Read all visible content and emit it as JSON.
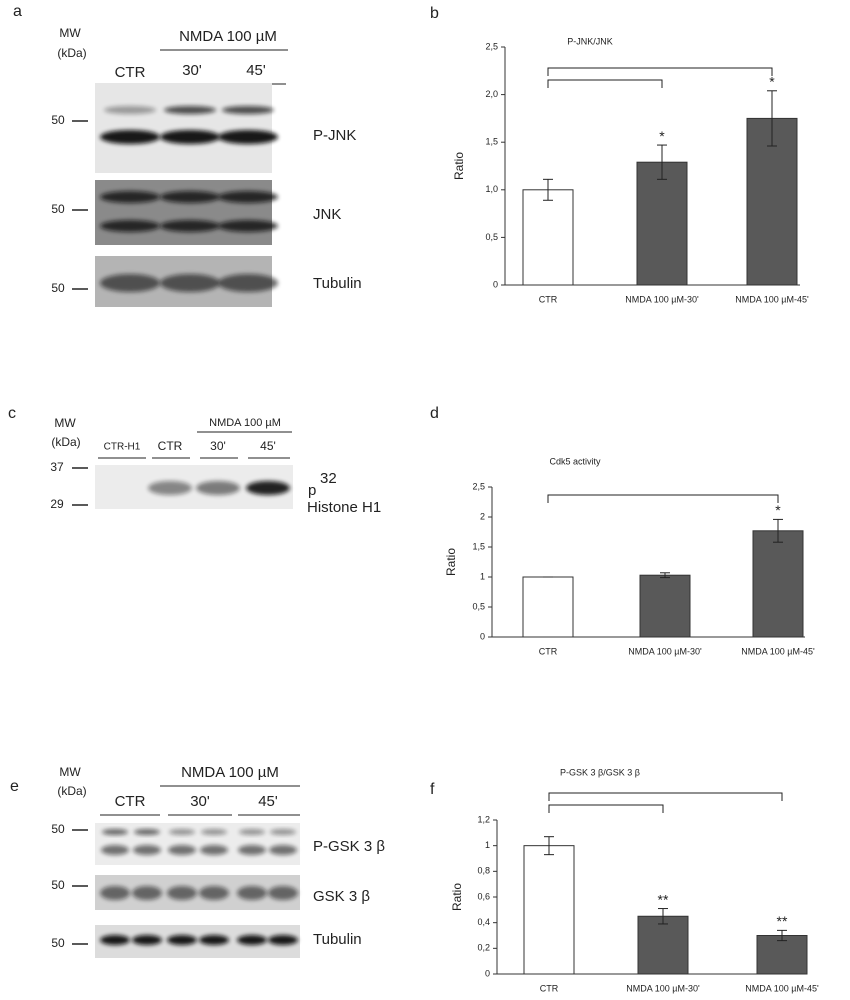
{
  "panels": [
    "a",
    "b",
    "c",
    "d",
    "e",
    "f"
  ],
  "blot_a": {
    "mw": "MW",
    "kda": "(kDa)",
    "treatment": "NMDA 100 µM",
    "lanes": [
      "CTR",
      "30'",
      "45'"
    ],
    "markers": [
      "50",
      "50",
      "50"
    ],
    "bands": [
      "P-JNK",
      "JNK",
      "Tubulin"
    ]
  },
  "blot_c": {
    "mw": "MW",
    "kda": "(kDa)",
    "treatment": "NMDA 100 µM",
    "lanes": [
      "CTR-H1",
      "CTR",
      "30'",
      "45'"
    ],
    "markers": [
      "37",
      "29"
    ],
    "band_prefix": "p",
    "band_sup": "32",
    "band": "Histone H1"
  },
  "blot_e": {
    "mw": "MW",
    "kda": "(kDa)",
    "treatment": "NMDA 100 µM",
    "lanes": [
      "CTR",
      "30'",
      "45'"
    ],
    "markers": [
      "50",
      "50",
      "50"
    ],
    "bands": [
      "P-GSK 3 β",
      "GSK 3 β",
      "Tubulin"
    ]
  },
  "chart_data": [
    {
      "type": "bar",
      "title": "P-JNK/JNK",
      "y_label": "Ratio",
      "categories": [
        "CTR",
        "NMDA 100 µM-30'",
        "NMDA 100 µM-45'"
      ],
      "values": [
        1.0,
        1.29,
        1.75
      ],
      "error": [
        0.11,
        0.18,
        0.29
      ],
      "significance": [
        null,
        "*",
        "*"
      ],
      "colors": [
        "#ffffff",
        "#595959",
        "#595959"
      ],
      "ylim": [
        0,
        2.5
      ],
      "yticks": [
        0,
        {
          "value": 0.5,
          "label": "0,5"
        },
        {
          "value": 1.0,
          "label": "1,0"
        },
        {
          "value": 1.5,
          "label": "1,5"
        },
        {
          "value": 2.0,
          "label": "2,0"
        },
        {
          "value": 2.5,
          "label": "2,5"
        }
      ]
    },
    {
      "type": "bar",
      "title": "Cdk5 activity",
      "y_label": "Ratio",
      "categories": [
        "CTR",
        "NMDA 100 µM-30'",
        "NMDA 100 µM-45'"
      ],
      "values": [
        1.0,
        1.03,
        1.77
      ],
      "error": [
        0,
        0.04,
        0.19
      ],
      "significance": [
        null,
        null,
        "*"
      ],
      "colors": [
        "#ffffff",
        "#595959",
        "#595959"
      ],
      "ylim": [
        0,
        2.5
      ],
      "yticks": [
        0,
        {
          "value": 0.5,
          "label": "0,5"
        },
        1,
        {
          "value": 1.5,
          "label": "1,5"
        },
        2,
        {
          "value": 2.5,
          "label": "2,5"
        }
      ]
    },
    {
      "type": "bar",
      "title": "P-GSK 3 β/GSK 3 β",
      "y_label": "Ratio",
      "categories": [
        "CTR",
        "NMDA 100 µM-30'",
        "NMDA 100 µM-45'"
      ],
      "values": [
        1.0,
        0.45,
        0.3
      ],
      "error": [
        0.07,
        0.06,
        0.04
      ],
      "significance": [
        null,
        "**",
        "**"
      ],
      "colors": [
        "#ffffff",
        "#595959",
        "#595959"
      ],
      "ylim": [
        0,
        1.2
      ],
      "yticks": [
        0,
        {
          "value": 0.2,
          "label": "0,2"
        },
        {
          "value": 0.4,
          "label": "0,4"
        },
        {
          "value": 0.6,
          "label": "0,6"
        },
        {
          "value": 0.8,
          "label": "0,8"
        },
        1,
        {
          "value": 1.2,
          "label": "1,2"
        }
      ]
    }
  ]
}
